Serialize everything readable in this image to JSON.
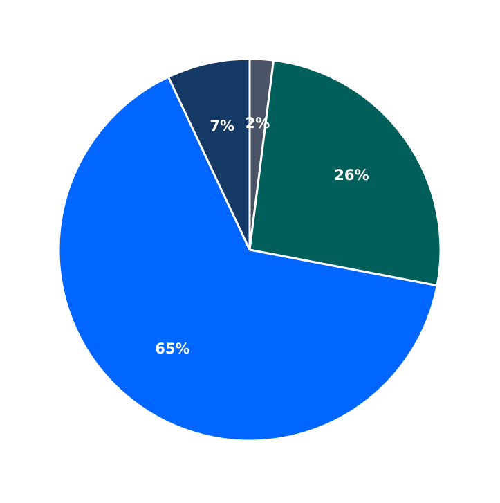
{
  "chart_data": {
    "type": "pie",
    "values": [
      2,
      26,
      65,
      7
    ],
    "value_labels": [
      "2%",
      "26%",
      "65%",
      "7%"
    ],
    "colors": [
      "#4a5466",
      "#005f5a",
      "#0066ff",
      "#143964"
    ],
    "start_angle": 90,
    "direction": "clockwise"
  }
}
